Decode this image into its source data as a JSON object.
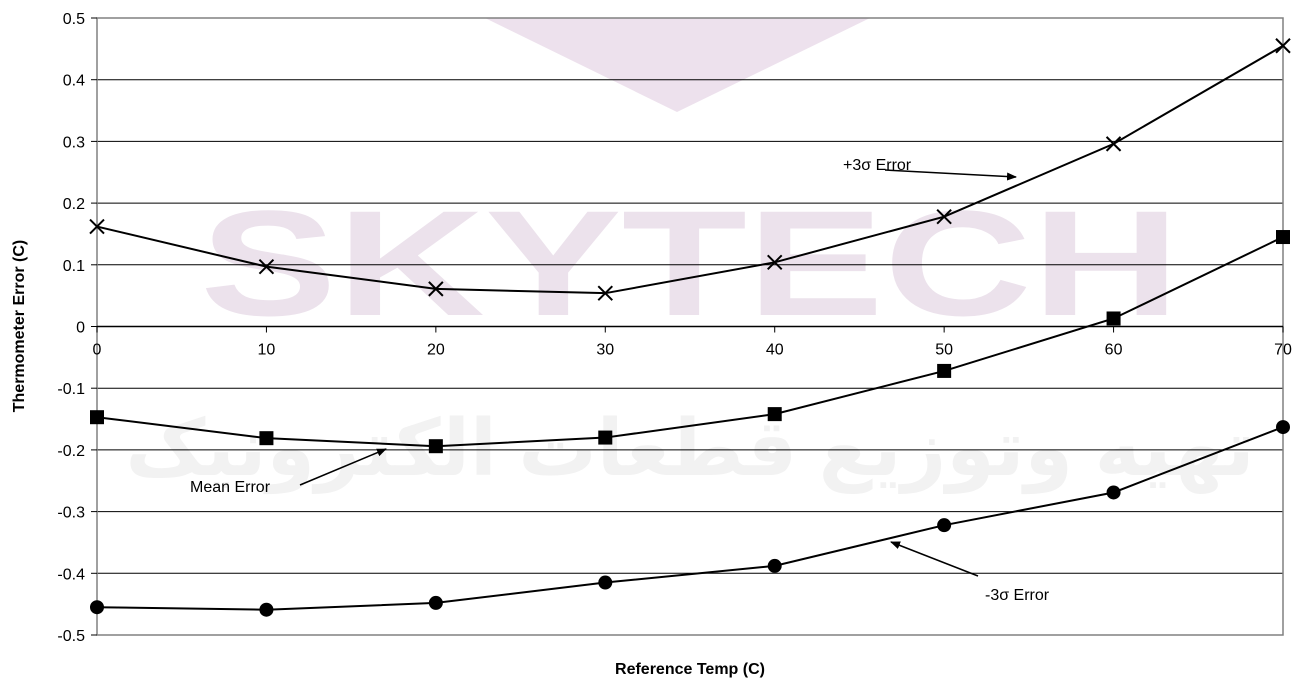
{
  "watermark": {
    "text": "SKYTECH",
    "subtext": "تهیه وتوزیع قطعات الکترونیک"
  },
  "chart_data": {
    "type": "line",
    "xlabel": "Reference Temp (C)",
    "ylabel": "Thermometer Error (C)",
    "xlim": [
      0,
      70
    ],
    "ylim": [
      -0.5,
      0.5
    ],
    "x_ticks": [
      "0",
      "10",
      "20",
      "30",
      "40",
      "50",
      "60",
      "70"
    ],
    "y_ticks": [
      "0.5",
      "0.4",
      "0.3",
      "0.2",
      "0.1",
      "0",
      "-0.1",
      "-0.2",
      "-0.3",
      "-0.4",
      "-0.5"
    ],
    "grid": "horizontal",
    "x": [
      0,
      10,
      20,
      30,
      40,
      50,
      60,
      70
    ],
    "series": [
      {
        "marker": "x",
        "values": [
          0.162,
          0.097,
          0.061,
          0.054,
          0.104,
          0.178,
          0.296,
          0.455
        ]
      },
      {
        "marker": "square",
        "values": [
          -0.147,
          -0.181,
          -0.194,
          -0.18,
          -0.142,
          -0.072,
          0.013,
          0.145
        ]
      },
      {
        "marker": "circle",
        "values": [
          -0.455,
          -0.459,
          -0.448,
          -0.415,
          -0.388,
          -0.322,
          -0.269,
          -0.163
        ]
      }
    ],
    "annotations": [
      {
        "text": "+3σ Error",
        "series": 0
      },
      {
        "text": "Mean Error",
        "series": 1
      },
      {
        "text": "-3σ Error",
        "series": 2
      }
    ]
  }
}
